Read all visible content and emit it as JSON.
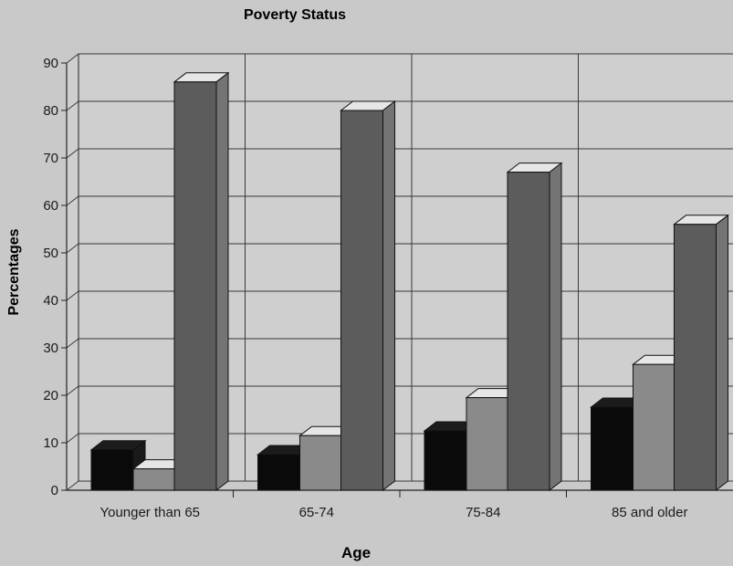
{
  "chart_data": {
    "type": "bar",
    "title": "Poverty Status",
    "xlabel": "Age",
    "ylabel": "Percentages",
    "categories": [
      "Younger than 65",
      "65-74",
      "75-84",
      "85 and older"
    ],
    "series": [
      {
        "values": [
          8.5,
          7.5,
          12.5,
          17.5
        ]
      },
      {
        "values": [
          4.5,
          11.5,
          19.5,
          26.5
        ]
      },
      {
        "values": [
          86,
          80,
          67,
          56
        ]
      }
    ],
    "ylim": [
      0,
      90
    ],
    "yticks": [
      0,
      10,
      20,
      30,
      40,
      50,
      60,
      70,
      80,
      90
    ],
    "grid": true,
    "colors": [
      "#0a0a0a",
      "#8a8a8a",
      "#5c5c5c"
    ]
  }
}
